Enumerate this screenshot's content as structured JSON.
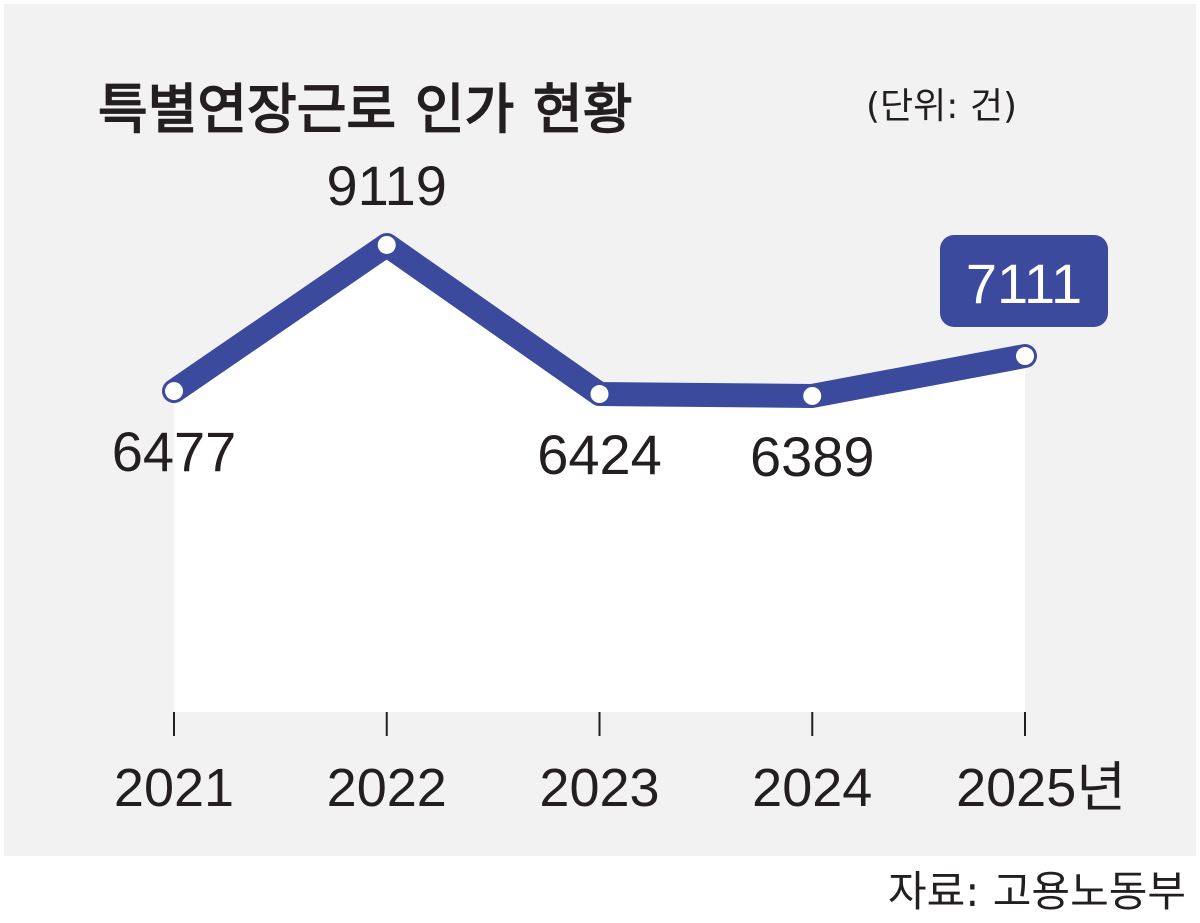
{
  "title": "특별연장근로 인가 현황",
  "unit_label": "(단위: 건)",
  "source": "자료: 고용노동부",
  "year_suffix": "년",
  "colors": {
    "line": "#3b4a9c",
    "background": "#f2f2f2",
    "area": "#ffffff",
    "highlight_label_bg": "#3b4a9c",
    "text": "#231f20"
  },
  "chart_data": {
    "type": "line",
    "title": "특별연장근로 인가 현황",
    "unit": "(단위: 건)",
    "categories": [
      "2021",
      "2022",
      "2023",
      "2024",
      "2025"
    ],
    "values": [
      6477,
      9119,
      6424,
      6389,
      7111
    ],
    "highlight_index": 4,
    "grid": false,
    "legend": "none"
  }
}
